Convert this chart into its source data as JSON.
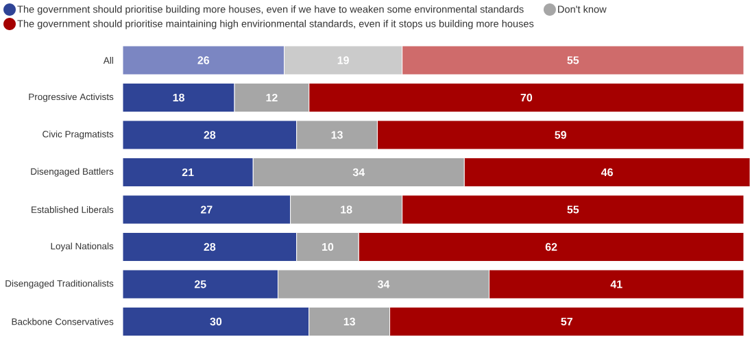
{
  "chart_data": {
    "type": "bar",
    "orientation": "horizontal",
    "stacked": true,
    "categories": [
      "All",
      "Progressive Activists",
      "Civic Pragmatists",
      "Disengaged Battlers",
      "Established Liberals",
      "Loyal Nationals",
      "Disengaged Traditionalists",
      "Backbone Conservatives"
    ],
    "series": [
      {
        "name": "The government should prioritise building more houses, even if we have to weaken some environmental standards",
        "color": "#2f4496",
        "colors": [
          "#7b86c2",
          "#2f4496",
          "#2f4496",
          "#2f4496",
          "#2f4496",
          "#2f4496",
          "#2f4496",
          "#2f4496"
        ],
        "values": [
          26,
          18,
          28,
          21,
          27,
          28,
          25,
          30
        ]
      },
      {
        "name": "Don't know",
        "color": "#a6a6a6",
        "colors": [
          "#cbcbcb",
          "#a6a6a6",
          "#a6a6a6",
          "#a6a6a6",
          "#a6a6a6",
          "#a6a6a6",
          "#a6a6a6",
          "#a6a6a6"
        ],
        "values": [
          19,
          12,
          13,
          34,
          18,
          10,
          34,
          13
        ]
      },
      {
        "name": "The government should prioritise maintaining high envirionmental standards, even if it stops us building more houses",
        "color": "#a50000",
        "colors": [
          "#cf6b6b",
          "#a50000",
          "#a50000",
          "#a50000",
          "#a50000",
          "#a50000",
          "#a50000",
          "#a50000"
        ],
        "values": [
          55,
          70,
          59,
          46,
          55,
          62,
          41,
          57
        ]
      }
    ],
    "xlim": [
      0,
      101
    ],
    "data_labels": true,
    "legend": "top",
    "tick_labels": "y"
  }
}
